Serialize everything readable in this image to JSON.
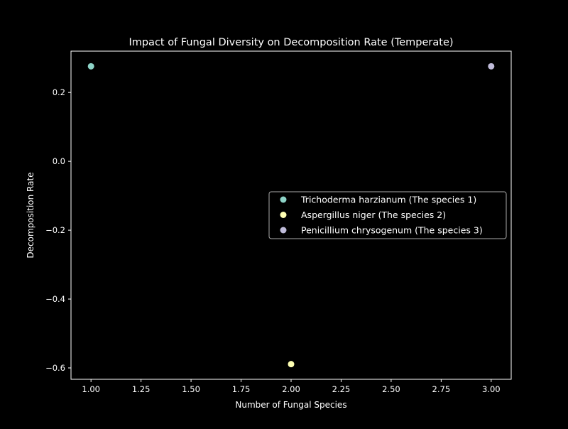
{
  "chart_data": {
    "type": "scatter",
    "title": "Impact of Fungal Diversity on Decomposition Rate (Temperate)",
    "xlabel": "Number of Fungal Species",
    "ylabel": "Decomposition Rate",
    "xlim": [
      0.9,
      3.1
    ],
    "ylim": [
      -0.633,
      0.32
    ],
    "xticks": [
      1.0,
      1.25,
      1.5,
      1.75,
      2.0,
      2.25,
      2.5,
      2.75,
      3.0
    ],
    "xtick_labels": [
      "1.00",
      "1.25",
      "1.50",
      "1.75",
      "2.00",
      "2.25",
      "2.50",
      "2.75",
      "3.00"
    ],
    "yticks": [
      0.2,
      0.0,
      -0.2,
      -0.4,
      -0.6
    ],
    "ytick_labels": [
      "0.2",
      "0.0",
      "−0.2",
      "−0.4",
      "−0.6"
    ],
    "grid": false,
    "legend_placement": "center-right",
    "series": [
      {
        "name": "Trichoderma harzianum (The species 1)",
        "color": "#8dd3c7",
        "x": [
          1
        ],
        "y": [
          0.276
        ]
      },
      {
        "name": "Aspergillus niger (The species 2)",
        "color": "#feffb3",
        "x": [
          2
        ],
        "y": [
          -0.589
        ]
      },
      {
        "name": "Penicillium chrysogenum (The species 3)",
        "color": "#bfbbd9",
        "x": [
          3
        ],
        "y": [
          0.276
        ]
      }
    ]
  }
}
